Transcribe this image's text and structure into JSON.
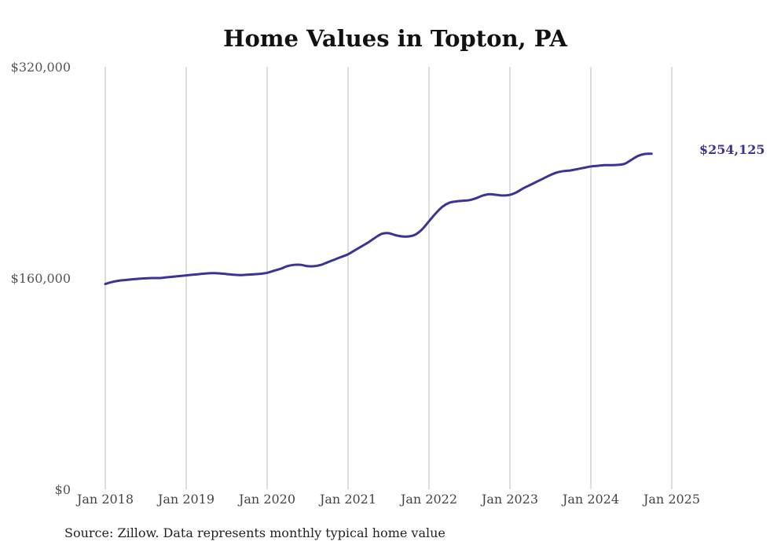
{
  "chart_data": {
    "type": "line",
    "title": "Home Values in Topton, PA",
    "xlabel": "",
    "ylabel": "",
    "x_start": "Jan 2018",
    "x_ticks": [
      "Jan 2018",
      "Jan 2019",
      "Jan 2020",
      "Jan 2021",
      "Jan 2022",
      "Jan 2023",
      "Jan 2024",
      "Jan 2025"
    ],
    "y_ticks": [
      "$0",
      "$160,000",
      "$320,000"
    ],
    "ylim": [
      0,
      320000
    ],
    "grid": "vertical",
    "series": [
      {
        "color": "#3a3595",
        "values": [
          155500,
          157000,
          158000,
          158500,
          159000,
          159500,
          159800,
          160000,
          160000,
          160500,
          161000,
          161500,
          162000,
          162500,
          163000,
          163500,
          163700,
          163500,
          163000,
          162500,
          162200,
          162500,
          162800,
          163200,
          164000,
          165500,
          167000,
          169000,
          170000,
          170000,
          169000,
          169000,
          170000,
          172000,
          174000,
          176000,
          178000,
          181000,
          184000,
          187000,
          190500,
          193500,
          194000,
          192500,
          191500,
          191500,
          193000,
          197000,
          203000,
          209000,
          214000,
          217000,
          218000,
          218500,
          219000,
          220500,
          222500,
          223500,
          223000,
          222500,
          223000,
          225000,
          228000,
          230500,
          233000,
          235500,
          238000,
          240000,
          241000,
          241500,
          242500,
          243500,
          244500,
          245000,
          245500,
          245500,
          245700,
          246500,
          249500,
          252500,
          254000,
          254125
        ]
      }
    ],
    "end_label": "$254,125",
    "source_note": "Source: Zillow. Data represents monthly typical home value"
  }
}
